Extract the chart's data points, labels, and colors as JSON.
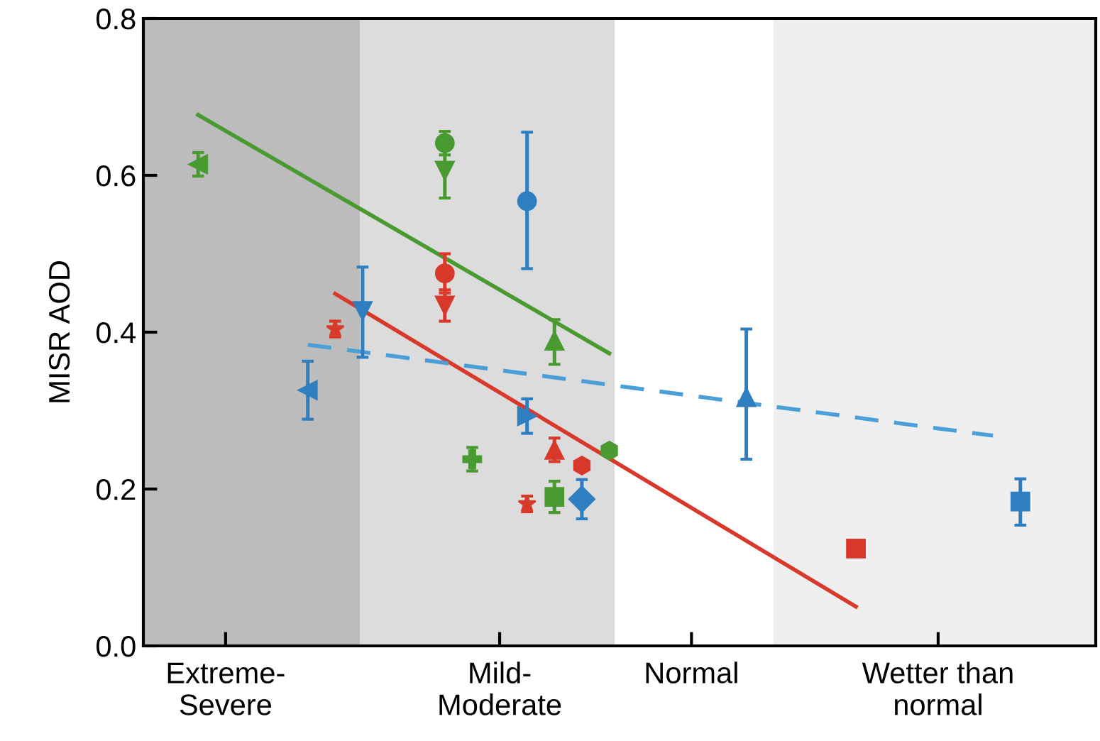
{
  "chart_data": {
    "type": "scatter",
    "ylabel": "MISR AOD",
    "ylim": [
      0,
      0.8
    ],
    "yticks": [
      {
        "value": 0,
        "label": "0.0"
      },
      0.2,
      0.4,
      0.6,
      0.8
    ],
    "categories": [
      null,
      null,
      null,
      "Extreme-\nSevere",
      null,
      null,
      null,
      null,
      null,
      null,
      null,
      null,
      null,
      "Mild-\nModerate",
      null,
      null,
      null,
      null,
      null,
      null,
      "Normal",
      null,
      null,
      null,
      null,
      null,
      null,
      null,
      null,
      "Wetter than\nnormal",
      null,
      null,
      null,
      null,
      null
    ],
    "grid": false,
    "legend": false,
    "series": [
      {
        "type": "line",
        "color": "#4a9a32",
        "line_style": "solid",
        "values": [
          null,
          null,
          0.677,
          null,
          null,
          null,
          null,
          null,
          null,
          null,
          null,
          null,
          null,
          null,
          null,
          null,
          null,
          0.373,
          null,
          null,
          null,
          null,
          null,
          null,
          null,
          null,
          null,
          null,
          null,
          null,
          null,
          null,
          null,
          null,
          null
        ]
      },
      {
        "type": "line",
        "color": "#d8392b",
        "line_style": "solid",
        "values": [
          null,
          null,
          null,
          null,
          null,
          null,
          null,
          0.449,
          null,
          null,
          null,
          null,
          null,
          null,
          null,
          null,
          null,
          null,
          null,
          null,
          null,
          null,
          null,
          null,
          null,
          null,
          0.05,
          null,
          null,
          null,
          null,
          null,
          null,
          null,
          null
        ]
      },
      {
        "type": "line",
        "color": "#4a9fd8",
        "line_style": "dashed",
        "values": [
          null,
          null,
          null,
          null,
          null,
          null,
          0.384,
          null,
          null,
          null,
          null,
          null,
          null,
          null,
          null,
          null,
          null,
          null,
          null,
          null,
          null,
          null,
          null,
          null,
          null,
          null,
          null,
          null,
          null,
          null,
          null,
          0.268,
          null,
          null,
          null
        ]
      },
      {
        "type": "scatter",
        "color": "#4a9a32",
        "marker": "triangle_left",
        "values": [
          null,
          null,
          0.614,
          null,
          null,
          null,
          null,
          null,
          null,
          null,
          null,
          null,
          null,
          null,
          null,
          null,
          null,
          null,
          null,
          null,
          null,
          null,
          null,
          null,
          null,
          null,
          null,
          null,
          null,
          null,
          null,
          null,
          null,
          null,
          null
        ],
        "errors": [
          null,
          null,
          0.015,
          null,
          null,
          null,
          null,
          null,
          null,
          null,
          null,
          null,
          null,
          null,
          null,
          null,
          null,
          null,
          null,
          null,
          null,
          null,
          null,
          null,
          null,
          null,
          null,
          null,
          null,
          null,
          null,
          null,
          null,
          null,
          null
        ]
      },
      {
        "type": "scatter",
        "color": "#4a9a32",
        "marker": "circle",
        "values": [
          null,
          null,
          null,
          null,
          null,
          null,
          null,
          null,
          null,
          null,
          null,
          0.641,
          null,
          null,
          null,
          null,
          null,
          null,
          null,
          null,
          null,
          null,
          null,
          null,
          null,
          null,
          null,
          null,
          null,
          null,
          null,
          null,
          null,
          null,
          null
        ],
        "errors": [
          null,
          null,
          null,
          null,
          null,
          null,
          null,
          null,
          null,
          null,
          null,
          0.015,
          null,
          null,
          null,
          null,
          null,
          null,
          null,
          null,
          null,
          null,
          null,
          null,
          null,
          null,
          null,
          null,
          null,
          null,
          null,
          null,
          null,
          null,
          null
        ]
      },
      {
        "type": "scatter",
        "color": "#4a9a32",
        "marker": "triangle_down",
        "values": [
          null,
          null,
          null,
          null,
          null,
          null,
          null,
          null,
          null,
          null,
          null,
          0.606,
          null,
          null,
          null,
          null,
          null,
          null,
          null,
          null,
          null,
          null,
          null,
          null,
          null,
          null,
          null,
          null,
          null,
          null,
          null,
          null,
          null,
          null,
          null
        ],
        "errors": [
          null,
          null,
          null,
          null,
          null,
          null,
          null,
          null,
          null,
          null,
          null,
          0.035,
          null,
          null,
          null,
          null,
          null,
          null,
          null,
          null,
          null,
          null,
          null,
          null,
          null,
          null,
          null,
          null,
          null,
          null,
          null,
          null,
          null,
          null,
          null
        ]
      },
      {
        "type": "scatter",
        "color": "#4a9a32",
        "marker": "cross",
        "values": [
          null,
          null,
          null,
          null,
          null,
          null,
          null,
          null,
          null,
          null,
          null,
          null,
          0.238,
          null,
          null,
          null,
          null,
          null,
          null,
          null,
          null,
          null,
          null,
          null,
          null,
          null,
          null,
          null,
          null,
          null,
          null,
          null,
          null,
          null,
          null
        ],
        "errors": [
          null,
          null,
          null,
          null,
          null,
          null,
          null,
          null,
          null,
          null,
          null,
          null,
          0.015,
          null,
          null,
          null,
          null,
          null,
          null,
          null,
          null,
          null,
          null,
          null,
          null,
          null,
          null,
          null,
          null,
          null,
          null,
          null,
          null,
          null,
          null
        ]
      },
      {
        "type": "scatter",
        "color": "#4a9a32",
        "marker": "triangle",
        "values": [
          null,
          null,
          null,
          null,
          null,
          null,
          null,
          null,
          null,
          null,
          null,
          null,
          null,
          null,
          null,
          0.389,
          null,
          null,
          null,
          null,
          null,
          null,
          null,
          null,
          null,
          null,
          null,
          null,
          null,
          null,
          null,
          null,
          null,
          null,
          null
        ],
        "errors": [
          null,
          null,
          null,
          null,
          null,
          null,
          null,
          null,
          null,
          null,
          null,
          null,
          null,
          null,
          null,
          [
            0.359,
            0.416
          ],
          null,
          null,
          null,
          null,
          null,
          null,
          null,
          null,
          null,
          null,
          null,
          null,
          null,
          null,
          null,
          null,
          null,
          null,
          null
        ]
      },
      {
        "type": "scatter",
        "color": "#4a9a32",
        "marker": "square",
        "values": [
          null,
          null,
          null,
          null,
          null,
          null,
          null,
          null,
          null,
          null,
          null,
          null,
          null,
          null,
          null,
          0.19,
          null,
          null,
          null,
          null,
          null,
          null,
          null,
          null,
          null,
          null,
          null,
          null,
          null,
          null,
          null,
          null,
          null,
          null,
          null
        ],
        "errors": [
          null,
          null,
          null,
          null,
          null,
          null,
          null,
          null,
          null,
          null,
          null,
          null,
          null,
          null,
          null,
          0.02,
          null,
          null,
          null,
          null,
          null,
          null,
          null,
          null,
          null,
          null,
          null,
          null,
          null,
          null,
          null,
          null,
          null,
          null,
          null
        ]
      },
      {
        "type": "scatter",
        "color": "#4a9a32",
        "values": [
          null,
          null,
          null,
          null,
          null,
          null,
          null,
          null,
          null,
          null,
          null,
          null,
          null,
          null,
          null,
          null,
          null,
          0.249,
          null,
          null,
          null,
          null,
          null,
          null,
          null,
          null,
          null,
          null,
          null,
          null,
          null,
          null,
          null,
          null,
          null
        ]
      },
      {
        "type": "scatter",
        "color": "#d8392b",
        "marker": "star",
        "values": [
          null,
          null,
          null,
          null,
          null,
          null,
          null,
          0.404,
          null,
          null,
          null,
          null,
          null,
          null,
          0.181,
          null,
          null,
          null,
          null,
          null,
          null,
          null,
          null,
          null,
          null,
          null,
          null,
          null,
          null,
          null,
          null,
          null,
          null,
          null,
          null
        ],
        "errors": [
          null,
          null,
          null,
          null,
          null,
          null,
          null,
          0.01,
          null,
          null,
          null,
          null,
          null,
          null,
          0.01,
          null,
          null,
          null,
          null,
          null,
          null,
          null,
          null,
          null,
          null,
          null,
          null,
          null,
          null,
          null,
          null,
          null,
          null,
          null,
          null
        ]
      },
      {
        "type": "scatter",
        "color": "#d8392b",
        "marker": "circle",
        "values": [
          null,
          null,
          null,
          null,
          null,
          null,
          null,
          null,
          null,
          null,
          null,
          0.475,
          null,
          null,
          null,
          null,
          null,
          null,
          null,
          null,
          null,
          null,
          null,
          null,
          null,
          null,
          null,
          null,
          null,
          null,
          null,
          null,
          null,
          null,
          null
        ],
        "errors": [
          null,
          null,
          null,
          null,
          null,
          null,
          null,
          null,
          null,
          null,
          null,
          0.025,
          null,
          null,
          null,
          null,
          null,
          null,
          null,
          null,
          null,
          null,
          null,
          null,
          null,
          null,
          null,
          null,
          null,
          null,
          null,
          null,
          null,
          null,
          null
        ]
      },
      {
        "type": "scatter",
        "color": "#d8392b",
        "marker": "triangle_down",
        "values": [
          null,
          null,
          null,
          null,
          null,
          null,
          null,
          null,
          null,
          null,
          null,
          0.434,
          null,
          null,
          null,
          null,
          null,
          null,
          null,
          null,
          null,
          null,
          null,
          null,
          null,
          null,
          null,
          null,
          null,
          null,
          null,
          null,
          null,
          null,
          null
        ],
        "errors": [
          null,
          null,
          null,
          null,
          null,
          null,
          null,
          null,
          null,
          null,
          null,
          0.02,
          null,
          null,
          null,
          null,
          null,
          null,
          null,
          null,
          null,
          null,
          null,
          null,
          null,
          null,
          null,
          null,
          null,
          null,
          null,
          null,
          null,
          null,
          null
        ]
      },
      {
        "type": "scatter",
        "color": "#d8392b",
        "marker": "triangle",
        "values": [
          null,
          null,
          null,
          null,
          null,
          null,
          null,
          null,
          null,
          null,
          null,
          null,
          null,
          null,
          null,
          0.25,
          null,
          null,
          null,
          null,
          null,
          null,
          null,
          null,
          null,
          null,
          null,
          null,
          null,
          null,
          null,
          null,
          null,
          null,
          null
        ],
        "errors": [
          null,
          null,
          null,
          null,
          null,
          null,
          null,
          null,
          null,
          null,
          null,
          null,
          null,
          null,
          null,
          0.015,
          null,
          null,
          null,
          null,
          null,
          null,
          null,
          null,
          null,
          null,
          null,
          null,
          null,
          null,
          null,
          null,
          null,
          null,
          null
        ]
      },
      {
        "type": "scatter",
        "color": "#d8392b",
        "values": [
          null,
          null,
          null,
          null,
          null,
          null,
          null,
          null,
          null,
          null,
          null,
          null,
          null,
          null,
          null,
          null,
          0.23,
          null,
          null,
          null,
          null,
          null,
          null,
          null,
          null,
          null,
          null,
          null,
          null,
          null,
          null,
          null,
          null,
          null,
          null
        ]
      },
      {
        "type": "scatter",
        "color": "#d8392b",
        "marker": "square",
        "values": [
          null,
          null,
          null,
          null,
          null,
          null,
          null,
          null,
          null,
          null,
          null,
          null,
          null,
          null,
          null,
          null,
          null,
          null,
          null,
          null,
          null,
          null,
          null,
          null,
          null,
          null,
          0.124,
          null,
          null,
          null,
          null,
          null,
          null,
          null,
          null
        ]
      },
      {
        "type": "scatter",
        "color": "#2f7fc0",
        "marker": "triangle_left",
        "values": [
          null,
          null,
          null,
          null,
          null,
          null,
          0.326,
          null,
          null,
          null,
          null,
          null,
          null,
          null,
          null,
          null,
          null,
          null,
          null,
          null,
          null,
          null,
          null,
          null,
          null,
          null,
          null,
          null,
          null,
          null,
          null,
          null,
          null,
          null,
          null
        ],
        "errors": [
          null,
          null,
          null,
          null,
          null,
          null,
          0.037,
          null,
          null,
          null,
          null,
          null,
          null,
          null,
          null,
          null,
          null,
          null,
          null,
          null,
          null,
          null,
          null,
          null,
          null,
          null,
          null,
          null,
          null,
          null,
          null,
          null,
          null,
          null,
          null
        ]
      },
      {
        "type": "scatter",
        "color": "#2f7fc0",
        "marker": "triangle_down",
        "values": [
          null,
          null,
          null,
          null,
          null,
          null,
          null,
          null,
          0.427,
          null,
          null,
          null,
          null,
          null,
          null,
          null,
          null,
          null,
          null,
          null,
          null,
          null,
          null,
          null,
          null,
          null,
          null,
          null,
          null,
          null,
          null,
          null,
          null,
          null,
          null
        ],
        "errors": [
          null,
          null,
          null,
          null,
          null,
          null,
          null,
          null,
          [
            0.368,
            0.483
          ],
          null,
          null,
          null,
          null,
          null,
          null,
          null,
          null,
          null,
          null,
          null,
          null,
          null,
          null,
          null,
          null,
          null,
          null,
          null,
          null,
          null,
          null,
          null,
          null,
          null,
          null
        ]
      },
      {
        "type": "scatter",
        "color": "#2f7fc0",
        "marker": "circle",
        "values": [
          null,
          null,
          null,
          null,
          null,
          null,
          null,
          null,
          null,
          null,
          null,
          null,
          null,
          null,
          0.567,
          null,
          null,
          null,
          null,
          null,
          null,
          null,
          null,
          null,
          null,
          null,
          null,
          null,
          null,
          null,
          null,
          null,
          null,
          null,
          null
        ],
        "errors": [
          null,
          null,
          null,
          null,
          null,
          null,
          null,
          null,
          null,
          null,
          null,
          null,
          null,
          null,
          [
            0.481,
            0.655
          ],
          null,
          null,
          null,
          null,
          null,
          null,
          null,
          null,
          null,
          null,
          null,
          null,
          null,
          null,
          null,
          null,
          null,
          null,
          null,
          null
        ]
      },
      {
        "type": "scatter",
        "color": "#2f7fc0",
        "marker": "triangle_right",
        "values": [
          null,
          null,
          null,
          null,
          null,
          null,
          null,
          null,
          null,
          null,
          null,
          null,
          null,
          null,
          0.293,
          null,
          null,
          null,
          null,
          null,
          null,
          null,
          null,
          null,
          null,
          null,
          null,
          null,
          null,
          null,
          null,
          null,
          null,
          null,
          null
        ],
        "errors": [
          null,
          null,
          null,
          null,
          null,
          null,
          null,
          null,
          null,
          null,
          null,
          null,
          null,
          null,
          0.022,
          null,
          null,
          null,
          null,
          null,
          null,
          null,
          null,
          null,
          null,
          null,
          null,
          null,
          null,
          null,
          null,
          null,
          null,
          null,
          null
        ]
      },
      {
        "type": "scatter",
        "color": "#2f7fc0",
        "marker": "diamond",
        "values": [
          null,
          null,
          null,
          null,
          null,
          null,
          null,
          null,
          null,
          null,
          null,
          null,
          null,
          null,
          null,
          null,
          0.187,
          null,
          null,
          null,
          null,
          null,
          null,
          null,
          null,
          null,
          null,
          null,
          null,
          null,
          null,
          null,
          null,
          null,
          null
        ],
        "errors": [
          null,
          null,
          null,
          null,
          null,
          null,
          null,
          null,
          null,
          null,
          null,
          null,
          null,
          null,
          null,
          null,
          0.025,
          null,
          null,
          null,
          null,
          null,
          null,
          null,
          null,
          null,
          null,
          null,
          null,
          null,
          null,
          null,
          null,
          null,
          null
        ]
      },
      {
        "type": "scatter",
        "color": "#2f7fc0",
        "marker": "triangle",
        "values": [
          null,
          null,
          null,
          null,
          null,
          null,
          null,
          null,
          null,
          null,
          null,
          null,
          null,
          null,
          null,
          null,
          null,
          null,
          null,
          null,
          null,
          null,
          0.317,
          null,
          null,
          null,
          null,
          null,
          null,
          null,
          null,
          null,
          null,
          null,
          null
        ],
        "errors": [
          null,
          null,
          null,
          null,
          null,
          null,
          null,
          null,
          null,
          null,
          null,
          null,
          null,
          null,
          null,
          null,
          null,
          null,
          null,
          null,
          null,
          null,
          [
            0.238,
            0.404
          ],
          null,
          null,
          null,
          null,
          null,
          null,
          null,
          null,
          null,
          null,
          null,
          null
        ]
      },
      {
        "type": "scatter",
        "color": "#2f7fc0",
        "marker": "square",
        "values": [
          null,
          null,
          null,
          null,
          null,
          null,
          null,
          null,
          null,
          null,
          null,
          null,
          null,
          null,
          null,
          null,
          null,
          null,
          null,
          null,
          null,
          null,
          null,
          null,
          null,
          null,
          null,
          null,
          null,
          null,
          null,
          null,
          0.184,
          null,
          null
        ],
        "errors": [
          null,
          null,
          null,
          null,
          null,
          null,
          null,
          null,
          null,
          null,
          null,
          null,
          null,
          null,
          null,
          null,
          null,
          null,
          null,
          null,
          null,
          null,
          null,
          null,
          null,
          null,
          null,
          null,
          null,
          null,
          null,
          null,
          [
            0.154,
            0.213
          ],
          null,
          null
        ]
      }
    ]
  }
}
